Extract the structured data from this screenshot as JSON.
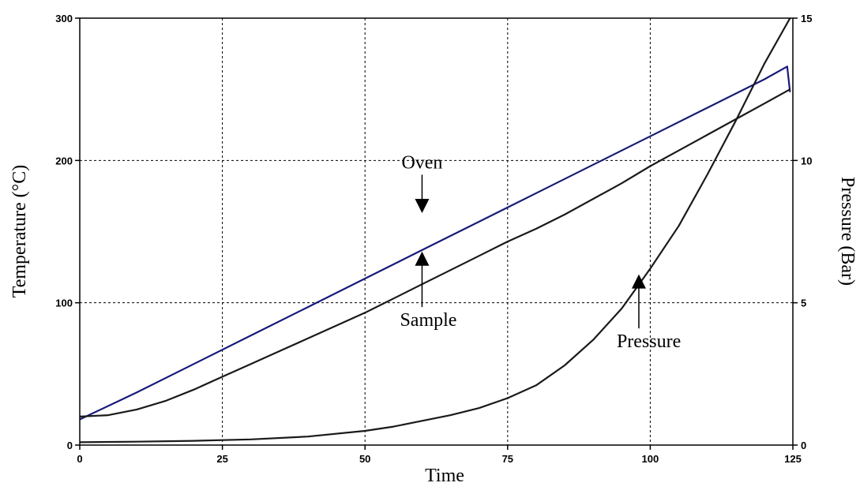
{
  "chart_data": {
    "type": "line",
    "title": "",
    "xlabel": "Time",
    "ylabel": "Temperature (°C)",
    "y2label": "Pressure (Bar)",
    "xlim": [
      0,
      125
    ],
    "ylim": [
      0,
      300
    ],
    "y2lim": [
      0,
      15
    ],
    "xticks": [
      0,
      25,
      50,
      75,
      100,
      125
    ],
    "yticks": [
      0,
      100,
      200,
      300
    ],
    "y2ticks": [
      0,
      5,
      10,
      15
    ],
    "grid": true,
    "series": [
      {
        "key": "oven",
        "axis": "left",
        "color": "#1a1a7a",
        "x": [
          0,
          10,
          20,
          30,
          40,
          50,
          60,
          70,
          80,
          90,
          100,
          110,
          120,
          124,
          124.5
        ],
        "y": [
          18,
          37,
          57,
          77,
          97,
          117,
          137,
          157,
          177,
          197,
          217,
          237,
          257,
          266,
          248
        ]
      },
      {
        "key": "sample",
        "axis": "left",
        "color": "#1a1a1a",
        "x": [
          0,
          5,
          10,
          15,
          20,
          25,
          30,
          35,
          40,
          45,
          50,
          55,
          60,
          65,
          70,
          75,
          80,
          85,
          90,
          95,
          100,
          105,
          110,
          115,
          120,
          124.5
        ],
        "y": [
          20,
          21,
          25,
          31,
          39,
          48,
          57,
          66,
          75,
          84,
          93,
          103,
          113,
          123,
          133,
          143,
          152,
          162,
          173,
          184,
          196,
          207,
          218,
          229,
          240,
          250
        ]
      },
      {
        "key": "pressure",
        "axis": "right",
        "color": "#1a1a1a",
        "x": [
          0,
          10,
          20,
          30,
          40,
          50,
          55,
          60,
          65,
          70,
          75,
          80,
          85,
          90,
          95,
          100,
          105,
          110,
          115,
          120,
          124.5
        ],
        "y": [
          0.1,
          0.12,
          0.15,
          0.2,
          0.3,
          0.5,
          0.65,
          0.85,
          1.05,
          1.3,
          1.65,
          2.1,
          2.8,
          3.7,
          4.8,
          6.2,
          7.7,
          9.5,
          11.4,
          13.4,
          15.0
        ]
      }
    ],
    "annotations": [
      {
        "label": "Oven",
        "x": 60,
        "y": 190,
        "arrow_to": [
          60,
          163
        ]
      },
      {
        "label": "Sample",
        "x": 60,
        "y": 97,
        "arrow_to": [
          60,
          136
        ]
      },
      {
        "label": "Pressure",
        "x": 98,
        "y": 82,
        "arrow_to": [
          98,
          120
        ]
      }
    ]
  }
}
